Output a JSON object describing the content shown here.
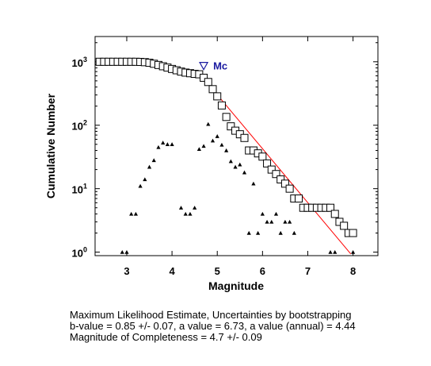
{
  "chart_data": {
    "type": "scatter",
    "xlabel": "Magnitude",
    "ylabel": "Cumulative Number",
    "xlim": [
      2.3,
      8.55
    ],
    "ylim": [
      0.88,
      2500
    ],
    "y_scale": "log",
    "grid": false,
    "x_ticks": [
      3,
      4,
      5,
      6,
      7,
      8
    ],
    "y_ticks": [
      {
        "value": 1,
        "base": "10",
        "exp": "0"
      },
      {
        "value": 10,
        "base": "10",
        "exp": "1"
      },
      {
        "value": 100,
        "base": "10",
        "exp": "2"
      },
      {
        "value": 1000,
        "base": "10",
        "exp": "3"
      }
    ],
    "annotation": {
      "label": "Mc",
      "marker": "down-triangle",
      "x": 4.7,
      "y": 870,
      "color": "#1a1aa0"
    },
    "series": [
      {
        "marker": "open-square",
        "values": [
          [
            2.4,
            1000
          ],
          [
            2.5,
            1000
          ],
          [
            2.6,
            1000
          ],
          [
            2.7,
            1000
          ],
          [
            2.8,
            1000
          ],
          [
            2.9,
            1000
          ],
          [
            3.0,
            1000
          ],
          [
            3.1,
            1000
          ],
          [
            3.2,
            1000
          ],
          [
            3.3,
            995
          ],
          [
            3.4,
            985
          ],
          [
            3.5,
            965
          ],
          [
            3.6,
            930
          ],
          [
            3.7,
            890
          ],
          [
            3.8,
            850
          ],
          [
            3.9,
            810
          ],
          [
            4.0,
            770
          ],
          [
            4.1,
            735
          ],
          [
            4.2,
            700
          ],
          [
            4.3,
            675
          ],
          [
            4.4,
            660
          ],
          [
            4.5,
            645
          ],
          [
            4.6,
            635
          ],
          [
            4.7,
            560
          ],
          [
            4.8,
            480
          ],
          [
            4.9,
            370
          ],
          [
            5.0,
            285
          ],
          [
            5.1,
            205
          ],
          [
            5.2,
            135
          ],
          [
            5.3,
            96
          ],
          [
            5.4,
            82
          ],
          [
            5.5,
            72
          ],
          [
            5.6,
            63
          ],
          [
            5.7,
            40
          ],
          [
            5.8,
            40
          ],
          [
            5.9,
            36
          ],
          [
            6.0,
            32
          ],
          [
            6.1,
            25
          ],
          [
            6.2,
            20
          ],
          [
            6.3,
            17
          ],
          [
            6.4,
            14
          ],
          [
            6.5,
            12
          ],
          [
            6.6,
            10
          ],
          [
            6.7,
            7
          ],
          [
            6.8,
            7
          ],
          [
            6.9,
            5
          ],
          [
            7.0,
            5
          ],
          [
            7.1,
            5
          ],
          [
            7.2,
            5
          ],
          [
            7.3,
            5
          ],
          [
            7.4,
            5
          ],
          [
            7.5,
            5
          ],
          [
            7.6,
            4
          ],
          [
            7.7,
            3
          ],
          [
            7.8,
            2.6
          ],
          [
            7.9,
            2
          ],
          [
            8.0,
            2
          ]
        ]
      },
      {
        "marker": "triangle",
        "values": [
          [
            2.9,
            1
          ],
          [
            3.0,
            1
          ],
          [
            3.1,
            4
          ],
          [
            3.2,
            4
          ],
          [
            3.3,
            11
          ],
          [
            3.4,
            14
          ],
          [
            3.5,
            22
          ],
          [
            3.6,
            28
          ],
          [
            3.7,
            45
          ],
          [
            3.8,
            53
          ],
          [
            3.9,
            50
          ],
          [
            4.0,
            50
          ],
          [
            4.2,
            5
          ],
          [
            4.3,
            4
          ],
          [
            4.4,
            4
          ],
          [
            4.5,
            5
          ],
          [
            4.6,
            42
          ],
          [
            4.7,
            47
          ],
          [
            4.8,
            104
          ],
          [
            4.9,
            57
          ],
          [
            5.0,
            67
          ],
          [
            5.1,
            49
          ],
          [
            5.2,
            40
          ],
          [
            5.3,
            27
          ],
          [
            5.4,
            22
          ],
          [
            5.5,
            24
          ],
          [
            5.6,
            18
          ],
          [
            5.7,
            2
          ],
          [
            5.8,
            12
          ],
          [
            5.9,
            2
          ],
          [
            6.0,
            4
          ],
          [
            6.1,
            3
          ],
          [
            6.2,
            3
          ],
          [
            6.3,
            4
          ],
          [
            6.4,
            2
          ],
          [
            6.5,
            3
          ],
          [
            6.6,
            3
          ],
          [
            6.7,
            2
          ],
          [
            7.5,
            1
          ],
          [
            7.6,
            1
          ],
          [
            8.0,
            1
          ]
        ]
      }
    ],
    "fit_line": {
      "b_value": 0.85,
      "a_value": 6.73,
      "x_start": 4.7,
      "x_end": 7.95,
      "color": "#ff0000"
    }
  },
  "caption": {
    "line1": "Maximum Likelihood Estimate, Uncertainties by bootstrapping",
    "line2": "b-value = 0.85 +/- 0.07,  a value = 6.73,  a value (annual) = 4.44",
    "line3": "Magnitude of Completeness = 4.7 +/- 0.09"
  }
}
